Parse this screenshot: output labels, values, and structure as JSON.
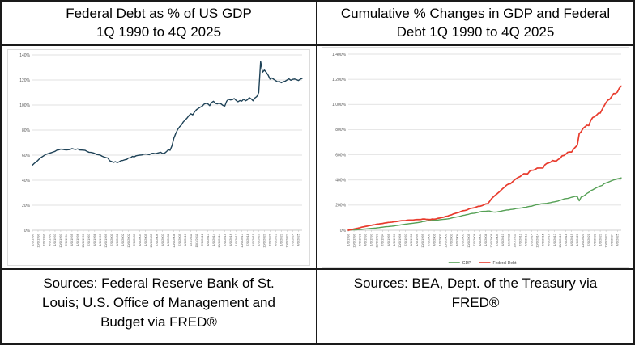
{
  "panels": {
    "left": {
      "title_lines": [
        "Federal Debt as % of US GDP",
        "1Q 1990 to 4Q 2025"
      ],
      "source_lines": [
        "Sources: Federal Reserve Bank of St.",
        "Louis; U.S. Office of Management and",
        "Budget via FRED®"
      ]
    },
    "right": {
      "title_lines": [
        "Cumulative % Changes in GDP and Federal",
        "Debt 1Q 1990 to 4Q 2025"
      ],
      "source_lines": [
        "Sources: BEA, Dept. of the Treasury via",
        "FRED®"
      ]
    }
  },
  "colors": {
    "debt_pct_gdp_line": "#1e4257",
    "gdp_line": "#55a055",
    "federal_debt_line": "#e83b2d",
    "gridline": "#d9d9d9",
    "axis": "#bfbfbf",
    "axis_label": "#595959",
    "border": "#1a1a1a"
  },
  "chart_data": [
    {
      "type": "line",
      "title": "Federal Debt as % of US GDP 1Q 1990 to 4Q 2025",
      "xlabel": "",
      "ylabel": "",
      "ylim": [
        0,
        140
      ],
      "ytick_step": 20,
      "ytick_format": "percent",
      "grid": true,
      "legend": false,
      "n_points": 144,
      "label_step_quarters": 3,
      "x_labels": [
        "1/1/1990",
        "10/1/1990",
        "7/1/1991",
        "4/1/1992",
        "1/1/1993",
        "10/1/1993",
        "7/1/1994",
        "4/1/1995",
        "1/1/1996",
        "10/1/1996",
        "7/1/1997",
        "4/1/1998",
        "1/1/1999",
        "10/1/1999",
        "7/1/2000",
        "4/1/2001",
        "1/1/2002",
        "10/1/2002",
        "7/1/2003",
        "4/1/2004",
        "1/1/2005",
        "10/1/2005",
        "7/1/2006",
        "4/1/2007",
        "1/1/2008",
        "10/1/2008",
        "7/1/2009",
        "4/1/2010",
        "1/1/2011",
        "10/1/2011",
        "7/1/2012",
        "4/1/2013",
        "1/1/2014",
        "10/1/2014",
        "7/1/2015",
        "4/1/2016",
        "1/1/2017",
        "10/1/2017",
        "7/1/2018",
        "4/1/2019",
        "1/1/2020",
        "10/1/2020",
        "7/1/2021",
        "4/1/2022",
        "1/1/2023",
        "10/1/2023",
        "7/1/2024",
        "4/1/2025"
      ],
      "series": [
        {
          "name": "Federal Debt as % of GDP",
          "color": "#1e4257",
          "width": 1.4,
          "values": [
            52,
            53.5,
            54.5,
            56,
            57.5,
            58.5,
            59.5,
            60.5,
            61,
            61.5,
            62,
            62.5,
            63,
            64,
            64.2,
            64.8,
            64.6,
            64.3,
            64.2,
            64.3,
            64.5,
            65.2,
            64.8,
            64.6,
            65,
            64.2,
            64.1,
            64,
            63.8,
            63,
            62.3,
            62.2,
            61.9,
            61.4,
            60.5,
            60.3,
            60,
            59.1,
            58.5,
            58,
            57.7,
            55.5,
            54.9,
            54.2,
            54.8,
            54,
            54.7,
            55.6,
            55.8,
            56.3,
            56.6,
            57.8,
            57.8,
            59,
            58.6,
            59.5,
            59.8,
            60,
            60.1,
            60.7,
            60.9,
            60.7,
            60.4,
            61.3,
            61.5,
            61.2,
            61.5,
            61.9,
            62.3,
            61.3,
            61.5,
            62.7,
            64.2,
            63.9,
            67.5,
            73.5,
            77.3,
            80.4,
            82.6,
            84.1,
            86.5,
            88.1,
            89.6,
            91.6,
            93,
            92.2,
            94.5,
            96.3,
            97.3,
            98.3,
            99,
            100.7,
            101.3,
            101,
            99.5,
            102,
            103,
            101.3,
            100.9,
            101.6,
            100.9,
            99.7,
            99.2,
            103.1,
            104.6,
            104.1,
            104.3,
            105.2,
            103.7,
            102.6,
            103.6,
            103.1,
            104.7,
            103.4,
            104.2,
            105.9,
            104.9,
            103.4,
            105.7,
            106.8,
            110,
            134.8,
            126.2,
            127.9,
            126.1,
            123.8,
            120.7,
            121.6,
            120.5,
            119.5,
            118.5,
            118.8,
            117.8,
            118.6,
            119,
            120,
            120.9,
            119.8,
            120.5,
            120.8,
            120.3,
            119.6,
            120.6,
            121.3
          ]
        }
      ]
    },
    {
      "type": "line",
      "title": "Cumulative % Changes in GDP and Federal Debt 1Q 1990 to 4Q 2025",
      "xlabel": "",
      "ylabel": "",
      "ylim": [
        0,
        1400
      ],
      "ytick_step": 200,
      "ytick_format": "percent-comma",
      "grid": true,
      "legend": true,
      "legend_position": "bottom",
      "n_points": 144,
      "label_step_quarters": 3,
      "x_labels": [
        "1/1/1990",
        "10/1/1990",
        "7/1/1991",
        "4/1/1992",
        "1/1/1993",
        "10/1/1993",
        "7/1/1994",
        "4/1/1995",
        "1/1/1996",
        "10/1/1996",
        "7/1/1997",
        "4/1/1998",
        "1/1/1999",
        "10/1/1999",
        "7/1/2000",
        "4/1/2001",
        "1/1/2002",
        "10/1/2002",
        "7/1/2003",
        "4/1/2004",
        "1/1/2005",
        "10/1/2005",
        "7/1/2006",
        "4/1/2007",
        "1/1/2008",
        "10/1/2008",
        "7/1/2009",
        "4/1/2010",
        "1/1/2011",
        "10/1/2011",
        "7/1/2012",
        "4/1/2013",
        "1/1/2014",
        "10/1/2014",
        "7/1/2015",
        "4/1/2016",
        "1/1/2017",
        "10/1/2017",
        "7/1/2018",
        "4/1/2019",
        "1/1/2020",
        "10/1/2020",
        "7/1/2021",
        "4/1/2022",
        "1/1/2023",
        "10/1/2023",
        "7/1/2024",
        "4/1/2025"
      ],
      "series": [
        {
          "name": "GDP",
          "color": "#55a055",
          "width": 1.4,
          "values": [
            0,
            1.5,
            2.5,
            2.5,
            3,
            4.4,
            5.9,
            7.1,
            9,
            10.3,
            11.7,
            13.4,
            14.6,
            15.8,
            16.8,
            19.2,
            20.7,
            22.9,
            24.8,
            27,
            28.4,
            29.4,
            31.1,
            32.3,
            34.3,
            37.2,
            39,
            41.5,
            43.7,
            45.8,
            48.3,
            50.5,
            52.4,
            53.8,
            56,
            58.5,
            60.2,
            62.4,
            64.8,
            69.3,
            70.3,
            74.5,
            75.7,
            77.8,
            79,
            80.5,
            80.5,
            81.5,
            83.6,
            85.4,
            87.3,
            88.3,
            90.2,
            92.6,
            97,
            100.4,
            103,
            106.2,
            109.1,
            113.2,
            117.4,
            120,
            123.7,
            126.8,
            131.6,
            134.1,
            135.5,
            138.7,
            141.9,
            146.4,
            149.6,
            150.6,
            150.5,
            152.7,
            152.8,
            147.7,
            145,
            144.3,
            145.5,
            149.1,
            151.3,
            155.1,
            157.8,
            160.7,
            161.4,
            165,
            166.5,
            169,
            172.8,
            174.6,
            176.3,
            177.9,
            181.8,
            182.3,
            186.4,
            189.6,
            191,
            196.4,
            200.7,
            203.9,
            206.1,
            209.9,
            211.4,
            212.4,
            213.6,
            217,
            219.4,
            223.3,
            226.1,
            229.3,
            232.7,
            238.5,
            242.9,
            248.9,
            251.8,
            253.3,
            257.6,
            262.5,
            265.9,
            270,
            266.7,
            234.4,
            263.7,
            269.5,
            279.9,
            292.5,
            301,
            314.6,
            321.2,
            329.9,
            337.9,
            345.1,
            351.7,
            356.5,
            370.1,
            376.1,
            381.4,
            387.5,
            394.1,
            400.1,
            404,
            409,
            412.5,
            416
          ]
        },
        {
          "name": "Federal Debt",
          "color": "#e83b2d",
          "width": 1.7,
          "values": [
            0,
            3,
            5.9,
            10.2,
            12.8,
            16.1,
            20,
            24.6,
            27.2,
            30.5,
            33.1,
            36.7,
            38.7,
            42.6,
            44.3,
            48.8,
            50.2,
            52.1,
            53.8,
            57.4,
            59.3,
            62.3,
            62.9,
            64.6,
            67.9,
            69.2,
            71.1,
            74.4,
            76.4,
            76.4,
            77.4,
            80.3,
            81.6,
            81.6,
            81.3,
            83.9,
            85.2,
            84.9,
            85.5,
            89.4,
            89.1,
            86.5,
            85.9,
            85.5,
            89.1,
            87.8,
            90.4,
            94.8,
            97.2,
            100.9,
            104.2,
            110,
            111.8,
            118.6,
            122.2,
            129.3,
            133.7,
            138.3,
            141.9,
            149,
            155,
            156.9,
            159.9,
            167.7,
            174.3,
            176,
            178.9,
            184.5,
            190.1,
            190.7,
            195.3,
            202.5,
            209.4,
            211.1,
            228.4,
            250.7,
            264.8,
            278.2,
            290.4,
            303.5,
            318.6,
            332.6,
            344.5,
            359.9,
            367.8,
            370.1,
            384.8,
            398.9,
            410.7,
            419.9,
            426.8,
            438.6,
            449.8,
            448.9,
            448.9,
            468.9,
            477,
            478,
            484,
            494.7,
            495,
            495,
            495,
            520,
            531.5,
            535.4,
            541.6,
            555,
            550.8,
            550.5,
            563.6,
            571.8,
            591.5,
            594.8,
            605.6,
            620.3,
            622.3,
            621.9,
            644.9,
            660.7,
            676.7,
            768.2,
            783.6,
            809.8,
            822.3,
            835.4,
            832.1,
            871.1,
            895.7,
            902.3,
            914.1,
            930.2,
            931.5,
            960,
            987.5,
            1014.8,
            1033.8,
            1041.9,
            1062.5,
            1087.4,
            1087,
            1099,
            1130,
            1146
          ]
        }
      ]
    }
  ]
}
